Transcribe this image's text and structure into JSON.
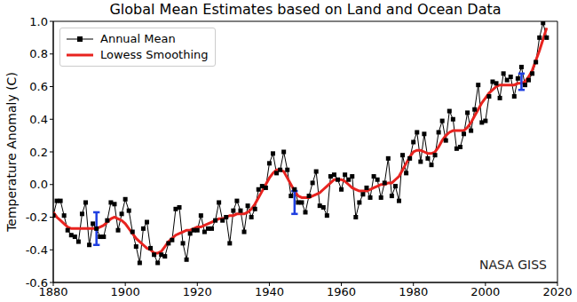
{
  "chart_data": {
    "type": "line",
    "title": "Global Mean Estimates based on Land and Ocean Data",
    "y_label": "Temperature Anomaly (C)",
    "annotation": "NASA GISS",
    "legend": "upper left",
    "grid": false,
    "x": [
      1880,
      1881,
      1882,
      1883,
      1884,
      1885,
      1886,
      1887,
      1888,
      1889,
      1890,
      1891,
      1892,
      1893,
      1894,
      1895,
      1896,
      1897,
      1898,
      1899,
      1900,
      1901,
      1902,
      1903,
      1904,
      1905,
      1906,
      1907,
      1908,
      1909,
      1910,
      1911,
      1912,
      1913,
      1914,
      1915,
      1916,
      1917,
      1918,
      1919,
      1920,
      1921,
      1922,
      1923,
      1924,
      1925,
      1926,
      1927,
      1928,
      1929,
      1930,
      1931,
      1932,
      1933,
      1934,
      1935,
      1936,
      1937,
      1938,
      1939,
      1940,
      1941,
      1942,
      1943,
      1944,
      1945,
      1946,
      1947,
      1948,
      1949,
      1950,
      1951,
      1952,
      1953,
      1954,
      1955,
      1956,
      1957,
      1958,
      1959,
      1960,
      1961,
      1962,
      1963,
      1964,
      1965,
      1966,
      1967,
      1968,
      1969,
      1970,
      1971,
      1972,
      1973,
      1974,
      1975,
      1976,
      1977,
      1978,
      1979,
      1980,
      1981,
      1982,
      1983,
      1984,
      1985,
      1986,
      1987,
      1988,
      1989,
      1990,
      1991,
      1992,
      1993,
      1994,
      1995,
      1996,
      1997,
      1998,
      1999,
      2000,
      2001,
      2002,
      2003,
      2004,
      2005,
      2006,
      2007,
      2008,
      2009,
      2010,
      2011,
      2012,
      2013,
      2014,
      2015,
      2016,
      2017
    ],
    "series": [
      {
        "name": "Annual Mean",
        "color": "#000000",
        "marker": "square",
        "line_style": "solid",
        "values": [
          -0.19,
          -0.1,
          -0.1,
          -0.19,
          -0.28,
          -0.31,
          -0.32,
          -0.35,
          -0.18,
          -0.11,
          -0.37,
          -0.24,
          -0.27,
          -0.32,
          -0.32,
          -0.22,
          -0.11,
          -0.12,
          -0.28,
          -0.18,
          -0.09,
          -0.16,
          -0.29,
          -0.38,
          -0.48,
          -0.27,
          -0.23,
          -0.39,
          -0.43,
          -0.48,
          -0.43,
          -0.44,
          -0.36,
          -0.34,
          -0.15,
          -0.14,
          -0.36,
          -0.46,
          -0.3,
          -0.28,
          -0.28,
          -0.19,
          -0.29,
          -0.27,
          -0.27,
          -0.22,
          -0.11,
          -0.22,
          -0.2,
          -0.36,
          -0.16,
          -0.1,
          -0.16,
          -0.29,
          -0.13,
          -0.2,
          -0.15,
          -0.03,
          -0.01,
          -0.02,
          0.13,
          0.19,
          0.07,
          0.09,
          0.2,
          0.09,
          -0.07,
          -0.03,
          -0.11,
          -0.11,
          -0.17,
          -0.07,
          0.01,
          0.08,
          -0.13,
          -0.14,
          -0.19,
          0.05,
          0.06,
          0.03,
          -0.03,
          0.06,
          0.03,
          0.05,
          -0.2,
          -0.11,
          -0.06,
          -0.02,
          -0.08,
          0.05,
          0.03,
          -0.08,
          0.01,
          0.16,
          -0.07,
          -0.01,
          -0.1,
          0.18,
          0.07,
          0.16,
          0.26,
          0.32,
          0.14,
          0.31,
          0.16,
          0.12,
          0.18,
          0.32,
          0.39,
          0.27,
          0.45,
          0.4,
          0.22,
          0.23,
          0.31,
          0.44,
          0.33,
          0.46,
          0.61,
          0.38,
          0.39,
          0.54,
          0.63,
          0.62,
          0.53,
          0.68,
          0.64,
          0.66,
          0.54,
          0.65,
          0.72,
          0.61,
          0.64,
          0.68,
          0.75,
          0.9,
          0.99,
          0.9
        ]
      },
      {
        "name": "Lowess Smoothing",
        "color": "#e8231f",
        "line_style": "solid",
        "values": [
          -0.17,
          -0.2,
          -0.22,
          -0.24,
          -0.26,
          -0.27,
          -0.27,
          -0.27,
          -0.27,
          -0.27,
          -0.27,
          -0.27,
          -0.27,
          -0.26,
          -0.25,
          -0.23,
          -0.21,
          -0.2,
          -0.21,
          -0.22,
          -0.24,
          -0.27,
          -0.3,
          -0.33,
          -0.35,
          -0.37,
          -0.39,
          -0.4,
          -0.42,
          -0.42,
          -0.41,
          -0.38,
          -0.35,
          -0.33,
          -0.31,
          -0.3,
          -0.29,
          -0.28,
          -0.28,
          -0.27,
          -0.26,
          -0.26,
          -0.25,
          -0.24,
          -0.23,
          -0.22,
          -0.21,
          -0.21,
          -0.2,
          -0.19,
          -0.19,
          -0.18,
          -0.18,
          -0.18,
          -0.17,
          -0.15,
          -0.12,
          -0.08,
          -0.04,
          0.0,
          0.04,
          0.07,
          0.09,
          0.09,
          0.08,
          0.04,
          0.0,
          -0.04,
          -0.07,
          -0.08,
          -0.08,
          -0.08,
          -0.07,
          -0.06,
          -0.05,
          -0.03,
          -0.01,
          0.01,
          0.03,
          0.03,
          0.03,
          0.02,
          0.0,
          -0.02,
          -0.03,
          -0.04,
          -0.04,
          -0.04,
          -0.03,
          -0.02,
          -0.01,
          0.0,
          0.0,
          0.01,
          0.01,
          0.03,
          0.05,
          0.09,
          0.13,
          0.17,
          0.2,
          0.21,
          0.21,
          0.2,
          0.19,
          0.19,
          0.2,
          0.23,
          0.27,
          0.3,
          0.32,
          0.33,
          0.33,
          0.33,
          0.33,
          0.35,
          0.38,
          0.42,
          0.46,
          0.5,
          0.53,
          0.56,
          0.58,
          0.6,
          0.61,
          0.61,
          0.61,
          0.61,
          0.61,
          0.62,
          0.62,
          0.63,
          0.66,
          0.7,
          0.76,
          0.82,
          0.89,
          0.96
        ]
      }
    ],
    "error_bars": {
      "color": "#1f3fe0",
      "x": [
        1892,
        1947,
        2010
      ],
      "low": [
        -0.37,
        -0.18,
        0.58
      ],
      "high": [
        -0.17,
        -0.04,
        0.68
      ]
    },
    "xlim": [
      1880,
      2020
    ],
    "xticks": [
      1880,
      1900,
      1920,
      1940,
      1960,
      1980,
      2000,
      2020
    ],
    "ylim": [
      -0.6,
      1.0
    ],
    "yticks": [
      -0.6,
      -0.4,
      -0.2,
      {
        "value": 0,
        "label": "0.0"
      },
      0.2,
      0.4,
      0.6,
      0.8,
      {
        "value": 1,
        "label": "1.0"
      }
    ]
  }
}
